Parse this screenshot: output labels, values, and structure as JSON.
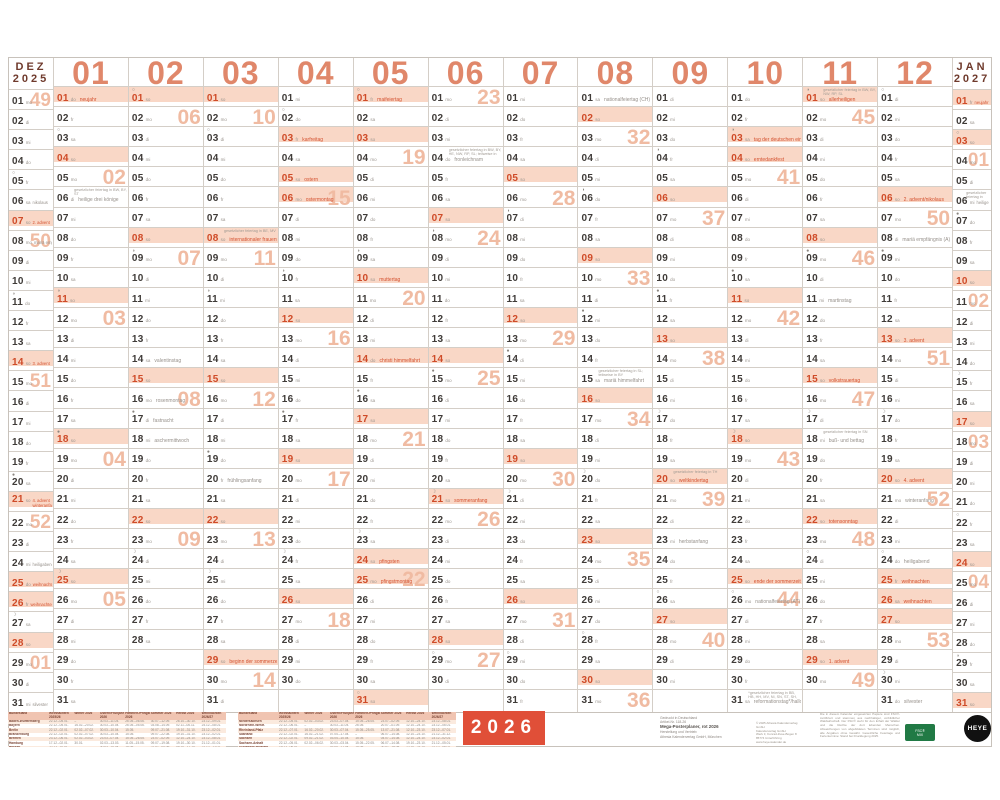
{
  "colors": {
    "accent": "#e0876a",
    "holiday_red": "#d4512f",
    "highlight_bg": "#f9d7c6",
    "week_number": "#f0bba2",
    "month_label_dark": "#6f3a2c",
    "badge_red": "#e04f38",
    "fsc_green": "#217a45"
  },
  "weekdays": [
    "mo",
    "di",
    "mi",
    "do",
    "fr",
    "sa",
    "so"
  ],
  "months": [
    {
      "label": "DEZ",
      "sub": "2025",
      "first": 0,
      "len": 31,
      "weeks": {
        "1": "49",
        "8": "50",
        "15": "51",
        "22": "52",
        "29": "01"
      },
      "moons": {
        "5": "○",
        "11": "◑",
        "20": "●",
        "27": "☽"
      },
      "extras": {
        "6": {
          "t": "nikolaus"
        },
        "7": {
          "t": "2. advent",
          "red": 1
        },
        "8": {
          "t": "mariä empfängnis (A)"
        },
        "14": {
          "t": "3. advent",
          "red": 1
        },
        "21": {
          "t": "4. advent",
          "t2": "winteranfang",
          "red": 1
        },
        "24": {
          "t": "heiligabend"
        },
        "25": {
          "t": "weihnachten",
          "red": 1,
          "hl": 1
        },
        "26": {
          "t": "weihnachten",
          "red": 1,
          "hl": 1
        },
        "31": {
          "t": "silvester"
        }
      }
    },
    {
      "num": "01",
      "first": 3,
      "len": 31,
      "weeks": {
        "5": "02",
        "12": "03",
        "19": "04",
        "26": "05"
      },
      "moons": {
        "3": "○",
        "11": "◑",
        "18": "●",
        "25": "☽"
      },
      "extras": {
        "1": {
          "t": "neujahr",
          "red": 1,
          "hl": 1
        },
        "6": {
          "t": "heilige drei könige",
          "n": "gesetzlicher feiertag in BW, BY, ST"
        }
      }
    },
    {
      "num": "02",
      "first": 6,
      "len": 28,
      "weeks": {
        "2": "06",
        "9": "07",
        "16": "08",
        "23": "09"
      },
      "moons": {
        "1": "○",
        "9": "◑",
        "17": "●",
        "24": "☽"
      },
      "extras": {
        "14": {
          "t": "valentinstag"
        },
        "16": {
          "t": "rosenmontag"
        },
        "17": {
          "t": "fastnacht"
        },
        "18": {
          "t": "aschermittwoch"
        }
      }
    },
    {
      "num": "03",
      "first": 6,
      "len": 31,
      "weeks": {
        "2": "10",
        "9": "11",
        "16": "12",
        "23": "13",
        "30": "14"
      },
      "moons": {
        "3": "○",
        "11": "◑",
        "19": "●",
        "25": "☽"
      },
      "extras": {
        "8": {
          "t": "internationaler frauentag",
          "red": 1,
          "n": "gesetzlicher feiertag in BE, MV"
        },
        "20": {
          "t": "frühlingsanfang"
        },
        "29": {
          "t": "beginn der sommerzeit",
          "red": 1
        }
      }
    },
    {
      "num": "04",
      "first": 2,
      "len": 30,
      "weeks": {
        "6": "15",
        "13": "16",
        "20": "17",
        "27": "18"
      },
      "moons": {
        "2": "○",
        "10": "◑",
        "17": "●",
        "24": "☽"
      },
      "extras": {
        "3": {
          "t": "karfreitag",
          "red": 1,
          "hl": 1
        },
        "5": {
          "t": "ostern",
          "red": 1
        },
        "6": {
          "t": "ostermontag",
          "red": 1,
          "hl": 1
        }
      }
    },
    {
      "num": "05",
      "first": 4,
      "len": 31,
      "weeks": {
        "4": "19",
        "11": "20",
        "18": "21",
        "25": "22"
      },
      "moons": {
        "1": "○",
        "9": "◑",
        "16": "●",
        "23": "☽",
        "31": "○"
      },
      "extras": {
        "1": {
          "t": "maifeiertag",
          "red": 1,
          "hl": 1
        },
        "10": {
          "t": "muttertag",
          "red": 1
        },
        "14": {
          "t": "christi himmelfahrt",
          "red": 1,
          "hl": 1
        },
        "24": {
          "t": "pfingsten",
          "red": 1
        },
        "25": {
          "t": "pfingstmontag",
          "red": 1,
          "hl": 1
        }
      }
    },
    {
      "num": "06",
      "first": 0,
      "len": 30,
      "weeks": {
        "1": "23",
        "8": "24",
        "15": "25",
        "22": "26",
        "29": "27"
      },
      "moons": {
        "8": "◑",
        "15": "●",
        "21": "☽",
        "29": "○"
      },
      "extras": {
        "4": {
          "t": "fronleichnam",
          "n": "gesetzlicher feiertag in BW, BY, HE, NW, RP, SL; teilweise in SN, TH"
        },
        "21": {
          "t": "sommeranfang",
          "red": 1
        }
      }
    },
    {
      "num": "07",
      "first": 2,
      "len": 31,
      "weeks": {
        "6": "28",
        "13": "29",
        "20": "30",
        "27": "31"
      },
      "moons": {
        "7": "◑",
        "14": "●",
        "21": "☽",
        "29": "○"
      },
      "extras": {}
    },
    {
      "num": "08",
      "first": 5,
      "len": 31,
      "weeks": {
        "3": "32",
        "10": "33",
        "17": "34",
        "24": "35",
        "31": "36"
      },
      "moons": {
        "6": "◑",
        "12": "●",
        "20": "☽",
        "28": "○"
      },
      "extras": {
        "1": {
          "t": "nationalfeiertag (CH)"
        },
        "15": {
          "t": "mariä himmelfahrt",
          "n": "gesetzlicher feiertag in SL; teilweise in BY"
        }
      }
    },
    {
      "num": "09",
      "first": 1,
      "len": 30,
      "weeks": {
        "7": "37",
        "14": "38",
        "21": "39",
        "28": "40"
      },
      "moons": {
        "4": "◑",
        "11": "●",
        "17": "☽",
        "26": "○"
      },
      "extras": {
        "20": {
          "t": "weltkindertag",
          "red": 1,
          "n": "gesetzlicher feiertag in TH"
        },
        "23": {
          "t": "herbstanfang"
        }
      }
    },
    {
      "num": "10",
      "first": 3,
      "len": 31,
      "weeks": {
        "5": "41",
        "12": "42",
        "19": "43",
        "26": "44"
      },
      "moons": {
        "3": "◑",
        "10": "●",
        "18": "☽",
        "26": "○"
      },
      "extras": {
        "3": {
          "t": "tag der deutschen einheit",
          "red": 1,
          "hl": 1
        },
        "4": {
          "t": "erntedankfest",
          "red": 1
        },
        "25": {
          "t": "ende der sommerzeit",
          "red": 1
        },
        "26": {
          "t": "nationalfeiertag (AT)"
        },
        "31": {
          "t": "reformationstag*/halloween",
          "n": "*gesetzlicher feiertag in BB, HB, HH, MV, NI, SN, ST, SH, TH"
        }
      }
    },
    {
      "num": "11",
      "first": 6,
      "len": 30,
      "weeks": {
        "2": "45",
        "9": "46",
        "16": "47",
        "23": "48",
        "30": "49"
      },
      "moons": {
        "1": "◑",
        "9": "●",
        "17": "☽",
        "24": "○"
      },
      "extras": {
        "1": {
          "t": "allerheiligen",
          "red": 1,
          "n": "gesetzlicher feiertag in BW, BY, NW, RP, SL"
        },
        "11": {
          "t": "martinstag"
        },
        "15": {
          "t": "volkstrauertag",
          "red": 1
        },
        "18": {
          "t": "buß- und bettag",
          "n": "gesetzlicher feiertag in SN"
        },
        "22": {
          "t": "totensonntag",
          "red": 1
        },
        "29": {
          "t": "1. advent",
          "red": 1
        }
      }
    },
    {
      "num": "12",
      "first": 1,
      "len": 31,
      "weeks": {
        "7": "50",
        "14": "51",
        "21": "52",
        "28": "53"
      },
      "moons": {
        "1": "○",
        "9": "●",
        "17": "☽",
        "24": "○",
        "30": "☽"
      },
      "extras": {
        "6": {
          "t": "2. advent/nikolaus",
          "red": 1
        },
        "8": {
          "t": "mariä empfängnis (A)"
        },
        "13": {
          "t": "3. advent",
          "red": 1
        },
        "20": {
          "t": "4. advent",
          "red": 1
        },
        "21": {
          "t": "winteranfang"
        },
        "24": {
          "t": "heiligabend"
        },
        "25": {
          "t": "weihnachten",
          "red": 1,
          "hl": 1
        },
        "26": {
          "t": "weihnachten",
          "red": 1,
          "hl": 1
        },
        "31": {
          "t": "silvester"
        }
      }
    },
    {
      "label": "JAN",
      "sub": "2027",
      "first": 4,
      "len": 31,
      "weeks": {
        "4": "01",
        "11": "02",
        "18": "03",
        "25": "04"
      },
      "moons": {
        "3": "○",
        "7": "●",
        "15": "☽",
        "22": "○",
        "29": "◑"
      },
      "extras": {
        "1": {
          "t": "neujahr",
          "red": 1,
          "hl": 1
        },
        "6": {
          "t": "heilige drei könige",
          "n": "gesetzlicher feiertag in BW, BY, ST"
        }
      }
    }
  ],
  "footer": {
    "badge": "2026",
    "table_headers": [
      "Bundesland",
      "Weihnachten 2025/26",
      "Winter 2026",
      "Ostern/Frühjahr 2026",
      "Himmelf./Pfingsten 2026",
      "Sommer 2026",
      "Herbst 2026",
      "Weihnachten 2026/27"
    ],
    "tables": [
      [
        [
          "Baden-Württemberg",
          "22.12.–05.01.",
          "–",
          "30.03.–11.04.",
          "26.05.–06.06.",
          "30.07.–12.09.",
          "26.10.–30.10.",
          "23.12.–09.01."
        ],
        [
          "Bayern",
          "22.12.–05.01.",
          "16.02.–20.02.",
          "30.03.–10.04.",
          "26.05.–05.06.",
          "03.08.–14.09.",
          "02.11.–06.11.",
          "24.12.–08.01."
        ],
        [
          "Berlin",
          "22.12.–02.01.",
          "02.02.–07.02.",
          "30.03.–10.04.",
          "15.05.",
          "09.07.–21.08.",
          "19.10.–31.10.",
          "23.12.–02.01."
        ],
        [
          "Brandenburg",
          "22.12.–02.01.",
          "02.02.–07.02.",
          "30.03.–10.04.",
          "15.05.",
          "09.07.–22.08.",
          "19.10.–31.10.",
          "23.12.–02.01."
        ],
        [
          "Bremen",
          "23.12.–06.01.",
          "02.02.–03.02.",
          "23.03.–07.04.",
          "15.05.–26.05.",
          "23.07.–02.09.",
          "12.10.–24.10.",
          "23.12.–08.01."
        ],
        [
          "Hamburg",
          "17.12.–02.01.",
          "30.01.",
          "02.03.–13.03.",
          "11.05.–15.05.",
          "09.07.–19.08.",
          "19.10.–30.10.",
          "21.12.–01.01."
        ],
        [
          "Hessen",
          "22.12.–10.01.",
          "–",
          "30.03.–10.04.",
          "15.05.",
          "27.07.–04.09.",
          "05.10.–17.10.",
          "22.12.–12.01."
        ],
        [
          "Mecklenburg-Vorp.",
          "22.12.–02.01.",
          "02.02.–13.02.",
          "30.03.–08.04.",
          "15.05.–25.05.",
          "13.07.–22.08.",
          "05.10.–10.10.",
          "21.12.–02.01."
        ]
      ],
      [
        [
          "Niedersachsen",
          "22.12.–05.01.",
          "02.02.–03.02.",
          "23.03.–07.04.",
          "15.05.–26.05.",
          "23.07.–02.09.",
          "12.10.–24.10.",
          "23.12.–08.01."
        ],
        [
          "Nordrhein-Westf.",
          "22.12.–06.01.",
          "–",
          "30.03.–11.04.",
          "26.05.",
          "20.07.–01.09.",
          "12.10.–24.10.",
          "23.12.–06.01."
        ],
        [
          "Rheinland-Pfalz",
          "22.12.–07.01.",
          "16.02.–20.02.",
          "30.03.–07.04.",
          "15.05.–25.05.",
          "13.07.–21.08.",
          "12.10.–23.10.",
          "23.12.–07.01."
        ],
        [
          "Saarland",
          "22.12.–02.01.",
          "16.02.–21.02.",
          "07.04.–17.04.",
          "–",
          "06.07.–14.08.",
          "12.10.–23.10.",
          "21.12.–31.12."
        ],
        [
          "Sachsen",
          "22.12.–02.01.",
          "09.02.–21.02.",
          "03.04.–10.04.",
          "15.05.",
          "04.07.–14.08.",
          "12.10.–24.10.",
          "23.12.–02.01."
        ],
        [
          "Sachsen-Anhalt",
          "22.12.–05.01.",
          "02.02.–06.02.",
          "30.03.–03.04.",
          "15.05.–22.05.",
          "06.07.–14.08.",
          "19.10.–23.10.",
          "21.12.–05.01."
        ],
        [
          "Schleswig-Holstein",
          "19.12.–06.01.",
          "–",
          "03.04.–17.04.",
          "15.05.",
          "20.07.–29.08.",
          "12.10.–23.10.",
          "21.12.–06.01."
        ],
        [
          "Thüringen",
          "22.12.–03.01.",
          "02.02.–07.02.",
          "30.03.–10.04.",
          "15.05.",
          "04.07.–14.08.",
          "12.10.–24.10.",
          "23.12.–02.01."
        ]
      ]
    ],
    "product": {
      "small1": "Gedruckt in Deutschland",
      "small2": "Artikel-Nr. 118-26",
      "name": "Mega-Posterplaner, rot 2026",
      "small3": "Herstellung und Vertrieb:",
      "small4": "Athesia Kalenderverlag GmbH, München"
    },
    "copyright": [
      "© 2025 Athesia Kalenderverlag GmbH",
      "Kalenderverlag GmbH",
      "Werk 3, Konrad-Zuse-Bogen 8",
      "85774 Unterföhring",
      "www.heye-kalender.de"
    ],
    "paper_note": "Die in diesem Kalender eingesetzten Papiere sind FSC®-zertifiziert und stammen aus nachhaltiger, vorbildlicher Waldwirtschaft. Der FSC® steht für den Erhalt der Wälder und die Rechte der dort lebenden Menschen. Abweichungen von abgebildeten Terminen sind möglich, alle Angaben ohne Gewähr. Gesetzliche Feiertage und Ferientermine: Stand bei Drucklegung 2025.",
    "fsc_lines": [
      "FSC®",
      "MIX"
    ],
    "brand": "HEYE"
  }
}
